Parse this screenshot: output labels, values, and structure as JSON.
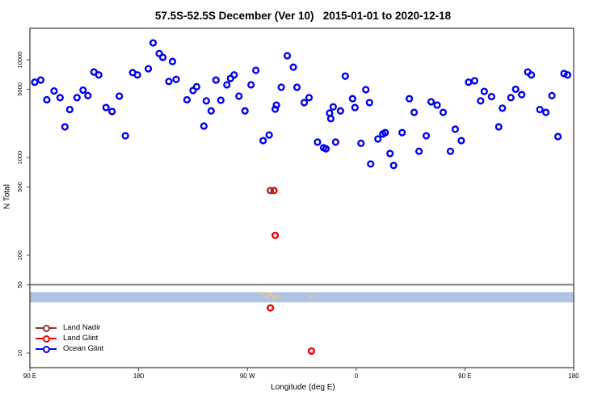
{
  "title": "57.5S-52.5S December (Ver 10)   2015-01-01 to 2020-12-18",
  "chart_data": {
    "type": "scatter",
    "title": "57.5S-52.5S December (Ver 10)   2015-01-01 to 2020-12-18",
    "xlabel": "Longitude (deg E)",
    "ylabel": "N Total",
    "x_axis": {
      "range_deg": [
        90,
        540
      ],
      "ticks_deg": [
        90,
        180,
        270,
        360,
        450,
        540
      ],
      "tick_labels": [
        "90 E",
        "180",
        "90 W",
        "0",
        "90 E",
        "180"
      ]
    },
    "y_axis": {
      "scale": "log",
      "range": [
        9,
        18000
      ],
      "ticks": [
        10,
        50,
        100,
        500,
        1000,
        5000,
        10000
      ],
      "tick_labels": [
        "10",
        "50",
        "100",
        "500",
        "1000",
        "5000",
        "10000"
      ]
    },
    "reference_line": {
      "y": 50,
      "color": "#7a7a7a"
    },
    "band": {
      "y_from": 33,
      "y_to": 42,
      "color": "#AEC3E1"
    },
    "legend": {
      "position": "bottom-left"
    },
    "series": [
      {
        "name": "Land Nadir",
        "color": "#8F3333",
        "marker": "open-circle",
        "points": [
          [
            289,
            460
          ]
        ]
      },
      {
        "name": "Land Glint",
        "color": "#EE0000",
        "marker": "open-circle",
        "points": [
          [
            292,
            460
          ],
          [
            293,
            160
          ],
          [
            289,
            29
          ],
          [
            323,
            10.5
          ]
        ]
      },
      {
        "name": "Ocean Glint",
        "color": "#0000EE",
        "marker": "open-circle",
        "points": [
          [
            94,
            5900
          ],
          [
            99,
            6200
          ],
          [
            104,
            3900
          ],
          [
            110,
            4800
          ],
          [
            115,
            4100
          ],
          [
            119,
            2060
          ],
          [
            123,
            3100
          ],
          [
            129,
            4100
          ],
          [
            134,
            4900
          ],
          [
            138,
            4300
          ],
          [
            143,
            7500
          ],
          [
            147,
            7000
          ],
          [
            153,
            3250
          ],
          [
            158,
            2960
          ],
          [
            164,
            4250
          ],
          [
            169,
            1670
          ],
          [
            175,
            7400
          ],
          [
            179,
            7000
          ],
          [
            188,
            8100
          ],
          [
            192,
            14900
          ],
          [
            197,
            11600
          ],
          [
            200,
            10600
          ],
          [
            205,
            6000
          ],
          [
            208,
            9600
          ],
          [
            211,
            6300
          ],
          [
            220,
            3900
          ],
          [
            225,
            4850
          ],
          [
            228,
            5300
          ],
          [
            234,
            2100
          ],
          [
            236,
            3800
          ],
          [
            240,
            3000
          ],
          [
            244,
            6200
          ],
          [
            248,
            3860
          ],
          [
            253,
            5550
          ],
          [
            256,
            6450
          ],
          [
            259,
            7000
          ],
          [
            263,
            4250
          ],
          [
            268,
            3000
          ],
          [
            273,
            5550
          ],
          [
            277,
            7800
          ],
          [
            283,
            1490
          ],
          [
            288,
            1700
          ],
          [
            293,
            3130
          ],
          [
            294,
            3440
          ],
          [
            298,
            5240
          ],
          [
            303,
            11000
          ],
          [
            308,
            8400
          ],
          [
            311,
            5240
          ],
          [
            317,
            3650
          ],
          [
            321,
            4100
          ],
          [
            328,
            1440
          ],
          [
            333,
            1260
          ],
          [
            335,
            1230
          ],
          [
            338,
            2850
          ],
          [
            339,
            2500
          ],
          [
            341,
            3300
          ],
          [
            343,
            1440
          ],
          [
            347,
            3000
          ],
          [
            351,
            6800
          ],
          [
            357,
            4000
          ],
          [
            359,
            3250
          ],
          [
            364,
            1400
          ],
          [
            368,
            4950
          ],
          [
            371,
            3650
          ],
          [
            372,
            860
          ],
          [
            378,
            1550
          ],
          [
            382,
            1740
          ],
          [
            384,
            1800
          ],
          [
            388,
            1100
          ],
          [
            391,
            830
          ],
          [
            398,
            1800
          ],
          [
            404,
            4000
          ],
          [
            408,
            2900
          ],
          [
            412,
            1160
          ],
          [
            418,
            1670
          ],
          [
            422,
            3720
          ],
          [
            427,
            3440
          ],
          [
            432,
            2900
          ],
          [
            438,
            1160
          ],
          [
            442,
            1950
          ],
          [
            447,
            1490
          ],
          [
            453,
            5900
          ],
          [
            458,
            6100
          ],
          [
            463,
            3800
          ],
          [
            466,
            4750
          ],
          [
            472,
            4200
          ],
          [
            478,
            2060
          ],
          [
            481,
            3200
          ],
          [
            488,
            4100
          ],
          [
            492,
            5000
          ],
          [
            497,
            4400
          ],
          [
            502,
            7500
          ],
          [
            505,
            7000
          ],
          [
            512,
            3100
          ],
          [
            517,
            2900
          ],
          [
            522,
            4300
          ],
          [
            527,
            1640
          ],
          [
            532,
            7240
          ],
          [
            535,
            7000
          ]
        ]
      },
      {
        "name": "unlabeled-tan-markers",
        "color": "#EFC97E",
        "marker": "dot",
        "points": [
          [
            283,
            41
          ],
          [
            286,
            38
          ],
          [
            289,
            40
          ],
          [
            292,
            37
          ],
          [
            295,
            38
          ],
          [
            323,
            38
          ]
        ]
      }
    ]
  },
  "legend_labels": {
    "land_nadir": "Land Nadir",
    "land_glint": "Land Glint",
    "ocean_glint": "Ocean Glint"
  }
}
